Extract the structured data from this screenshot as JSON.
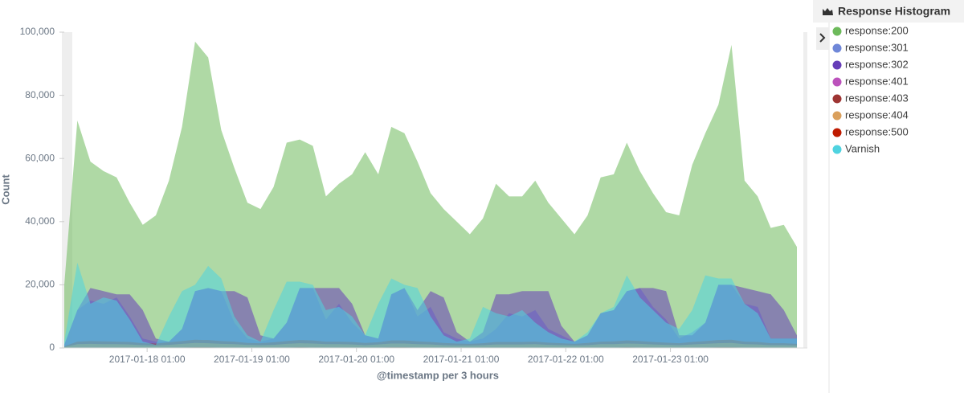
{
  "chart_data": {
    "type": "area",
    "legend_title": "Response Histogram",
    "xlabel": "@timestamp per 3 hours",
    "ylabel": "Count",
    "xlim": [
      "2017-01-17 06:00",
      "2017-01-24 06:00"
    ],
    "xticks": [
      "2017-01-18 01:00",
      "2017-01-19 01:00",
      "2017-01-20 01:00",
      "2017-01-21 01:00",
      "2017-01-22 01:00",
      "2017-01-23 01:00"
    ],
    "ylim": [
      0,
      100000
    ],
    "yticks": [
      0,
      {
        "value": 20000,
        "label": "20,000"
      },
      {
        "value": 40000,
        "label": "40,000"
      },
      {
        "value": 60000,
        "label": "60,000"
      },
      {
        "value": 80000,
        "label": "80,000"
      },
      {
        "value": 100000,
        "label": "100,000"
      }
    ],
    "grid": false,
    "x": [
      "2017-01-17 06:00",
      "2017-01-17 09:00",
      "2017-01-17 12:00",
      "2017-01-17 15:00",
      "2017-01-17 18:00",
      "2017-01-17 21:00",
      "2017-01-18 00:00",
      "2017-01-18 03:00",
      "2017-01-18 06:00",
      "2017-01-18 09:00",
      "2017-01-18 12:00",
      "2017-01-18 15:00",
      "2017-01-18 18:00",
      "2017-01-18 21:00",
      "2017-01-19 00:00",
      "2017-01-19 03:00",
      "2017-01-19 06:00",
      "2017-01-19 09:00",
      "2017-01-19 12:00",
      "2017-01-19 15:00",
      "2017-01-19 18:00",
      "2017-01-19 21:00",
      "2017-01-20 00:00",
      "2017-01-20 03:00",
      "2017-01-20 06:00",
      "2017-01-20 09:00",
      "2017-01-20 12:00",
      "2017-01-20 15:00",
      "2017-01-20 18:00",
      "2017-01-20 21:00",
      "2017-01-21 00:00",
      "2017-01-21 03:00",
      "2017-01-21 06:00",
      "2017-01-21 09:00",
      "2017-01-21 12:00",
      "2017-01-21 15:00",
      "2017-01-21 18:00",
      "2017-01-21 21:00",
      "2017-01-22 00:00",
      "2017-01-22 03:00",
      "2017-01-22 06:00",
      "2017-01-22 09:00",
      "2017-01-22 12:00",
      "2017-01-22 15:00",
      "2017-01-22 18:00",
      "2017-01-22 21:00",
      "2017-01-23 00:00",
      "2017-01-23 03:00",
      "2017-01-23 06:00",
      "2017-01-23 09:00",
      "2017-01-23 12:00",
      "2017-01-23 15:00",
      "2017-01-23 18:00",
      "2017-01-23 21:00",
      "2017-01-24 00:00",
      "2017-01-24 03:00",
      "2017-01-24 06:00"
    ],
    "series": [
      {
        "name": "response:200",
        "color": "#6dba5b",
        "values": [
          20000,
          72000,
          59000,
          56000,
          54000,
          46000,
          39000,
          42000,
          53000,
          70000,
          97000,
          92000,
          69000,
          57000,
          46000,
          44000,
          51000,
          65000,
          66000,
          64000,
          48000,
          52000,
          55000,
          62000,
          55000,
          70000,
          68000,
          59000,
          49000,
          44000,
          40000,
          36000,
          41000,
          52000,
          48000,
          48000,
          53000,
          46000,
          41000,
          36000,
          42000,
          54000,
          55000,
          65000,
          56000,
          49000,
          43000,
          42000,
          58000,
          68000,
          77000,
          96000,
          53000,
          48000,
          38000,
          39000,
          32000
        ]
      },
      {
        "name": "response:301",
        "color": "#6f87d8",
        "values": [
          1000,
          12000,
          15000,
          14000,
          16000,
          10000,
          3000,
          2000,
          2000,
          6000,
          18000,
          19000,
          18000,
          8000,
          3000,
          2000,
          3000,
          8000,
          19000,
          19000,
          9000,
          14000,
          8000,
          4000,
          3000,
          17000,
          19000,
          10000,
          13000,
          5000,
          3000,
          2000,
          3000,
          6000,
          11000,
          10000,
          12000,
          6000,
          4000,
          2000,
          4000,
          11000,
          12000,
          18000,
          19000,
          13000,
          9000,
          3000,
          5000,
          8000,
          20000,
          20000,
          14000,
          13000,
          3000,
          3000,
          3000
        ]
      },
      {
        "name": "response:302",
        "color": "#663db8",
        "values": [
          1000,
          12000,
          19000,
          18000,
          17000,
          17000,
          12000,
          3000,
          2000,
          6000,
          18000,
          19000,
          18000,
          18000,
          16000,
          4000,
          3000,
          8000,
          19000,
          19000,
          19000,
          19000,
          14000,
          4000,
          3000,
          17000,
          19000,
          12000,
          18000,
          16000,
          5000,
          2000,
          5000,
          17000,
          17000,
          18000,
          18000,
          18000,
          7000,
          2000,
          4000,
          11000,
          12000,
          18000,
          19000,
          19000,
          18000,
          4000,
          4000,
          8000,
          20000,
          20000,
          19000,
          18000,
          17000,
          12000,
          4000
        ]
      },
      {
        "name": "response:401",
        "color": "#bc52bc",
        "values": [
          100,
          300,
          300,
          300,
          300,
          300,
          200,
          200,
          300,
          300,
          400,
          400,
          300,
          300,
          200,
          200,
          300,
          300,
          400,
          400,
          300,
          300,
          300,
          200,
          300,
          400,
          400,
          300,
          300,
          200,
          200,
          200,
          300,
          300,
          300,
          300,
          300,
          200,
          200,
          200,
          300,
          300,
          300,
          400,
          400,
          300,
          300,
          200,
          300,
          300,
          400,
          400,
          300,
          300,
          200,
          200,
          200
        ]
      },
      {
        "name": "response:403",
        "color": "#9e3533",
        "values": [
          500,
          2000,
          2200,
          2100,
          2000,
          1900,
          1500,
          1400,
          1800,
          2200,
          2600,
          2500,
          2200,
          2000,
          1600,
          1500,
          1800,
          2200,
          2500,
          2400,
          2000,
          2000,
          1900,
          1600,
          1800,
          2400,
          2400,
          2100,
          1900,
          1600,
          1400,
          1300,
          1500,
          1900,
          1900,
          1900,
          2000,
          1700,
          1500,
          1300,
          1600,
          2000,
          2100,
          2400,
          2200,
          1900,
          1700,
          1500,
          1900,
          2200,
          2500,
          2600,
          2000,
          1900,
          1500,
          1500,
          1300
        ]
      },
      {
        "name": "response:404",
        "color": "#daa05d",
        "values": [
          300,
          1200,
          1300,
          1200,
          1200,
          1100,
          900,
          800,
          1000,
          1300,
          1600,
          1500,
          1300,
          1200,
          1000,
          900,
          1000,
          1300,
          1500,
          1400,
          1200,
          1200,
          1100,
          900,
          1100,
          1400,
          1400,
          1200,
          1100,
          900,
          800,
          800,
          900,
          1100,
          1100,
          1100,
          1200,
          1000,
          900,
          800,
          900,
          1200,
          1200,
          1400,
          1300,
          1100,
          1000,
          900,
          1100,
          1300,
          1500,
          1600,
          1200,
          1100,
          900,
          900,
          800
        ]
      },
      {
        "name": "response:500",
        "color": "#bf1b00",
        "values": [
          0,
          100,
          100,
          100,
          100,
          100,
          0,
          0,
          100,
          100,
          200,
          200,
          100,
          100,
          0,
          0,
          100,
          100,
          200,
          100,
          100,
          100,
          100,
          0,
          100,
          200,
          200,
          100,
          100,
          0,
          0,
          0,
          100,
          100,
          100,
          100,
          100,
          0,
          0,
          0,
          100,
          100,
          100,
          200,
          100,
          100,
          100,
          0,
          100,
          100,
          200,
          200,
          100,
          100,
          0,
          0,
          0
        ]
      },
      {
        "name": "Varnish",
        "color": "#4fd3e0",
        "values": [
          2000,
          27000,
          14000,
          16000,
          15000,
          9000,
          2000,
          1000,
          10000,
          18000,
          20000,
          26000,
          22000,
          10000,
          4000,
          2000,
          12000,
          21000,
          21000,
          20000,
          12000,
          13000,
          10000,
          4000,
          14000,
          22000,
          20000,
          19000,
          10000,
          4000,
          2000,
          3000,
          13000,
          11000,
          10000,
          12000,
          8000,
          5000,
          3000,
          2000,
          5000,
          11000,
          13000,
          23000,
          16000,
          12000,
          8000,
          6000,
          12000,
          23000,
          22000,
          22000,
          14000,
          11000,
          3000,
          3000,
          3000
        ]
      }
    ]
  }
}
